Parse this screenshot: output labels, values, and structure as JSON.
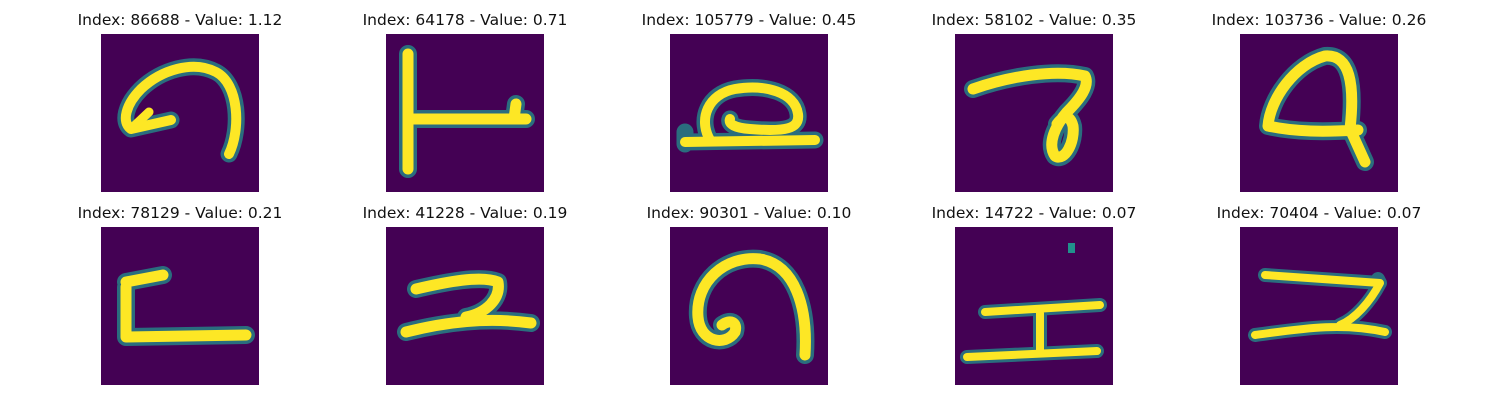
{
  "colormap": {
    "background": "#440154",
    "mid": "#21918c",
    "high": "#fde725",
    "edge": "#3fbc73"
  },
  "panels": [
    {
      "title": "Index: 86688 - Value: 1.12",
      "icon": "handwritten-glyph-loop-arrow-icon"
    },
    {
      "title": "Index: 64178 - Value: 0.71",
      "icon": "handwritten-glyph-t-icon"
    },
    {
      "title": "Index: 105779 - Value: 0.45",
      "icon": "handwritten-glyph-loop-base-icon"
    },
    {
      "title": "Index: 58102 - Value: 0.35",
      "icon": "handwritten-glyph-hook-icon"
    },
    {
      "title": "Index: 103736 - Value: 0.26",
      "icon": "handwritten-glyph-a-icon"
    },
    {
      "title": "Index: 78129 - Value: 0.21",
      "icon": "handwritten-glyph-l-icon"
    },
    {
      "title": "Index: 41228 - Value: 0.19",
      "icon": "handwritten-glyph-z-icon"
    },
    {
      "title": "Index: 90301 - Value: 0.10",
      "icon": "handwritten-glyph-arch-loop-icon"
    },
    {
      "title": "Index: 14722 - Value: 0.07",
      "icon": "handwritten-glyph-i-icon"
    },
    {
      "title": "Index: 70404 - Value: 0.07",
      "icon": "handwritten-glyph-z2-icon"
    }
  ]
}
